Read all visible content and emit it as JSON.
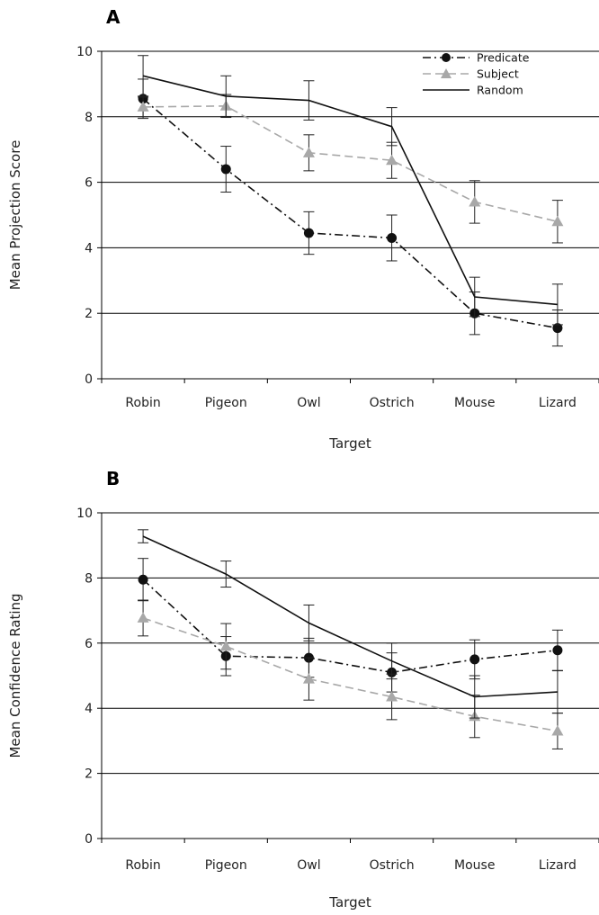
{
  "chart_data": [
    {
      "type": "line",
      "panel_label": "A",
      "categories": [
        "Robin",
        "Pigeon",
        "Owl",
        "Ostrich",
        "Mouse",
        "Lizard"
      ],
      "xlabel": "Target",
      "ylabel": "Mean Projection Score",
      "ylim": [
        0,
        10
      ],
      "yticks": [
        "0",
        "2",
        "4",
        "6",
        "8",
        "10"
      ],
      "grid": "horizontal",
      "legend": "top-right",
      "series": [
        {
          "name": "Predicate",
          "values": [
            8.55,
            6.4,
            4.45,
            4.3,
            2.0,
            1.55
          ],
          "err": [
            0.6,
            0.7,
            0.65,
            0.7,
            0.65,
            0.55
          ],
          "color": "#111111",
          "dash": "dashdot",
          "marker": "circle"
        },
        {
          "name": "Subject",
          "values": [
            8.3,
            8.33,
            6.9,
            6.67,
            5.4,
            4.8
          ],
          "err": [
            0.3,
            0.35,
            0.55,
            0.55,
            0.65,
            0.65
          ],
          "color": "#a8a8a8",
          "dash": "dashed",
          "marker": "triangle"
        },
        {
          "name": "Random",
          "values": [
            9.25,
            8.63,
            8.5,
            7.7,
            2.5,
            2.27
          ],
          "err": [
            0.62,
            0.62,
            0.6,
            0.58,
            0.6,
            0.62
          ],
          "color": "#111111",
          "dash": "solid",
          "marker": "none"
        }
      ]
    },
    {
      "type": "line",
      "panel_label": "B",
      "categories": [
        "Robin",
        "Pigeon",
        "Owl",
        "Ostrich",
        "Mouse",
        "Lizard"
      ],
      "xlabel": "Target",
      "ylabel": "Mean Confidence Rating",
      "ylim": [
        0,
        10
      ],
      "yticks": [
        "0",
        "2",
        "4",
        "6",
        "8",
        "10"
      ],
      "grid": "horizontal",
      "legend": "",
      "series": [
        {
          "name": "Predicate",
          "values": [
            7.95,
            5.6,
            5.55,
            5.1,
            5.5,
            5.78
          ],
          "err": [
            0.65,
            0.6,
            0.6,
            0.6,
            0.6,
            0.62
          ],
          "color": "#111111",
          "dash": "dashdot",
          "marker": "circle"
        },
        {
          "name": "Subject",
          "values": [
            6.77,
            5.9,
            4.9,
            4.35,
            3.75,
            3.3
          ],
          "err": [
            0.55,
            0.7,
            0.65,
            0.7,
            0.65,
            0.55
          ],
          "color": "#a8a8a8",
          "dash": "dashed",
          "marker": "triangle"
        },
        {
          "name": "Random",
          "values": [
            9.28,
            8.12,
            6.62,
            5.45,
            4.35,
            4.5
          ],
          "err": [
            0.2,
            0.4,
            0.55,
            0.55,
            0.65,
            0.65
          ],
          "color": "#111111",
          "dash": "solid",
          "marker": "none"
        }
      ]
    }
  ]
}
